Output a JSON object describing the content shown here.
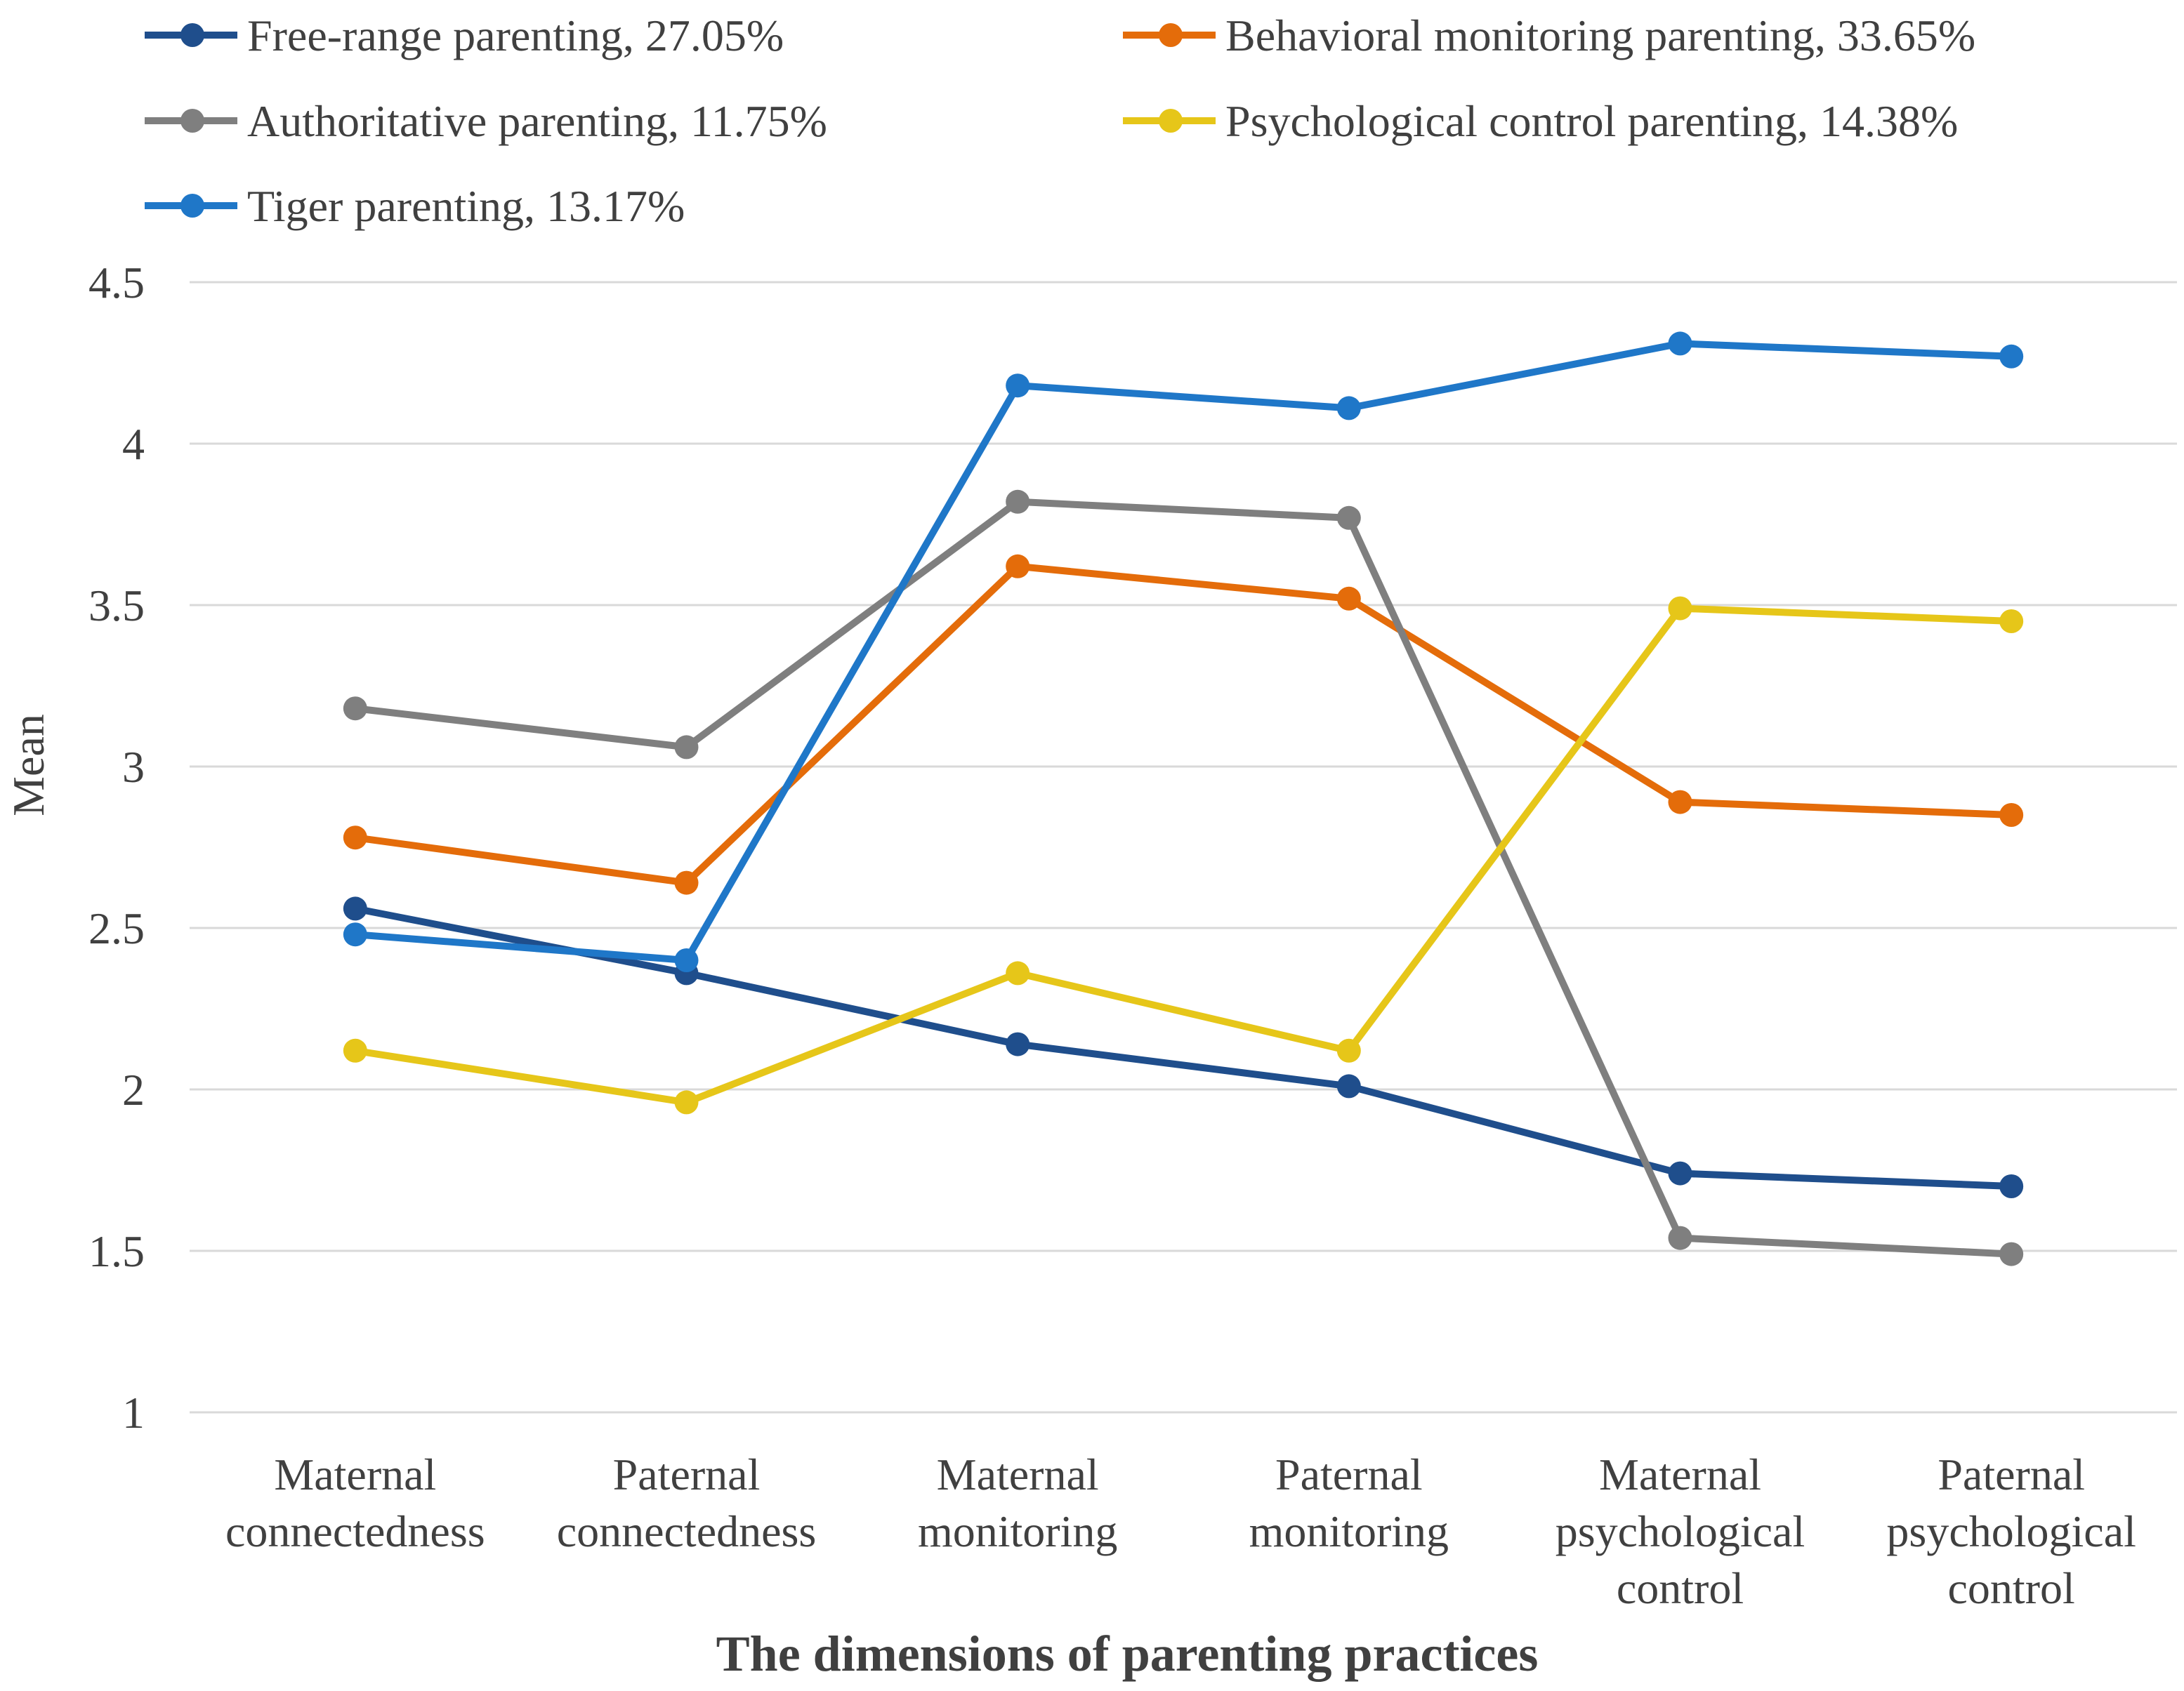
{
  "chart_data": {
    "type": "line",
    "xlabel": "The dimensions of parenting practices",
    "ylabel": "Mean",
    "ylim": [
      1,
      4.5
    ],
    "yticks": [
      "4.5",
      "4",
      "3.5",
      "3",
      "2.5",
      "2",
      "1.5",
      "1"
    ],
    "categories": [
      [
        "Maternal",
        "connectedness"
      ],
      [
        "Paternal",
        "connectedness"
      ],
      [
        "Maternal",
        "monitoring"
      ],
      [
        "Paternal",
        "monitoring"
      ],
      [
        "Maternal",
        "psychological",
        "control"
      ],
      [
        "Paternal",
        "psychological",
        "control"
      ]
    ],
    "grid": true,
    "legend_position": "top",
    "series": [
      {
        "name": "Free-range parenting, 27.05%",
        "color": "#1f4e8c",
        "values": [
          2.56,
          2.36,
          2.14,
          2.01,
          1.74,
          1.7
        ]
      },
      {
        "name": "Behavioral monitoring parenting, 33.65%",
        "color": "#e46c0a",
        "values": [
          2.78,
          2.64,
          3.62,
          3.52,
          2.89,
          2.85
        ]
      },
      {
        "name": "Authoritative parenting, 11.75%",
        "color": "#7f7f7f",
        "values": [
          3.18,
          3.06,
          3.82,
          3.77,
          1.54,
          1.49
        ]
      },
      {
        "name": "Psychological control parenting, 14.38%",
        "color": "#e6c619",
        "values": [
          2.12,
          1.96,
          2.36,
          2.12,
          3.49,
          3.45
        ]
      },
      {
        "name": "Tiger parenting, 13.17%",
        "color": "#1f77c8",
        "values": [
          2.48,
          2.4,
          4.18,
          4.11,
          4.31,
          4.27
        ]
      }
    ]
  }
}
